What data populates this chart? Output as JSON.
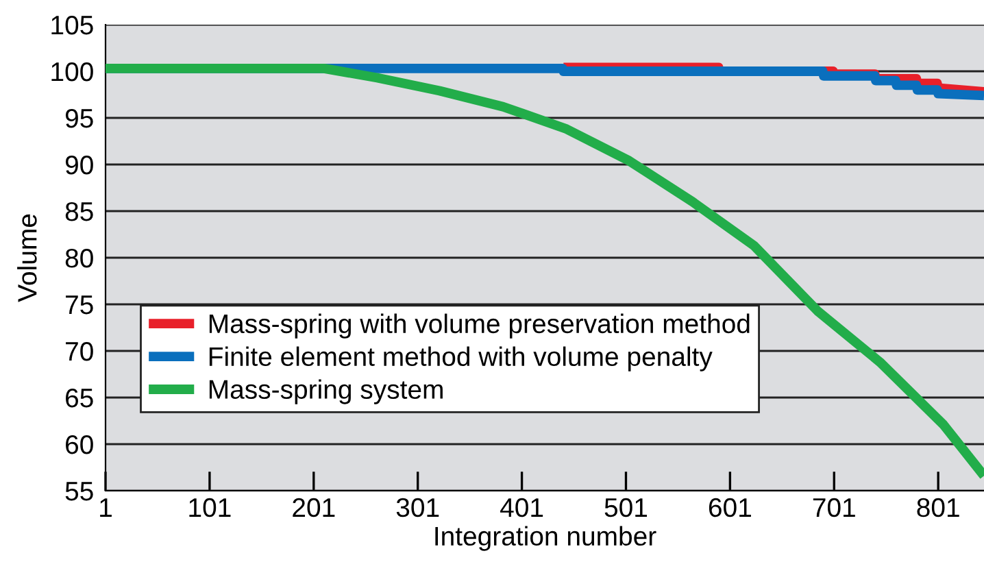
{
  "chart_data": {
    "type": "line",
    "xlabel": "Integration number",
    "ylabel": "Volume",
    "xlim": [
      1,
      845
    ],
    "xticks": [
      1,
      101,
      201,
      301,
      401,
      501,
      601,
      701,
      801
    ],
    "ylim": [
      55,
      105
    ],
    "yticks": [
      55,
      60,
      65,
      70,
      75,
      80,
      85,
      90,
      95,
      100,
      105
    ],
    "grid": "y",
    "legend": "bottom left",
    "line_style": "solid",
    "marker": "none",
    "series": [
      {
        "name": "Mass-spring with volume preservation method",
        "color": "#e8202a",
        "x": [
          441,
          590,
          591,
          700,
          701,
          740,
          741,
          780,
          781,
          800,
          801,
          845
        ],
        "values": [
          100.4,
          100.4,
          100.0,
          100.0,
          99.7,
          99.7,
          99.2,
          99.2,
          98.7,
          98.7,
          98.2,
          97.8
        ]
      },
      {
        "name": "Finite element method with volume penalty",
        "color": "#0a6fbd",
        "x": [
          1,
          440,
          441,
          690,
          691,
          740,
          741,
          760,
          761,
          780,
          781,
          800,
          801,
          845
        ],
        "values": [
          100.3,
          100.3,
          100.0,
          100.0,
          99.5,
          99.5,
          99.0,
          99.0,
          98.5,
          98.5,
          98.0,
          98.0,
          97.6,
          97.4
        ]
      },
      {
        "name": "Mass-spring system",
        "color": "#22ad4a",
        "x": [
          1,
          211,
          262,
          322,
          383,
          444,
          504,
          565,
          624,
          685,
          745,
          806,
          845
        ],
        "values": [
          100.3,
          100.3,
          99.3,
          97.9,
          96.2,
          93.8,
          90.4,
          86.0,
          81.3,
          74.3,
          68.8,
          62.1,
          56.6
        ]
      }
    ]
  }
}
